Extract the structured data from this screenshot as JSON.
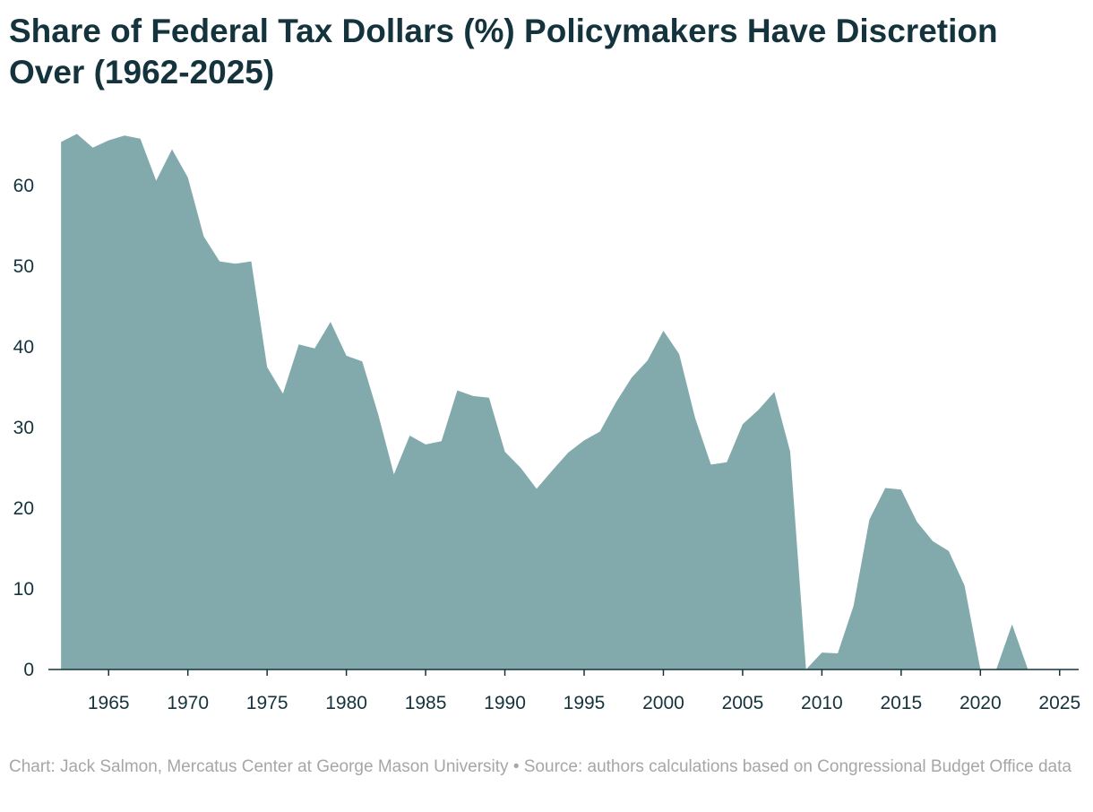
{
  "chart_data": {
    "type": "area",
    "title": "Share of Federal Tax Dollars (%) Policymakers Have Discretion Over (1962-2025)",
    "xlabel": "",
    "ylabel": "",
    "xlim": [
      1961.2,
      2026.2
    ],
    "ylim": [
      0,
      70
    ],
    "grid": false,
    "color": "#82aaad",
    "axis_color": "#14333d",
    "x_ticks": [
      1965,
      1970,
      1975,
      1980,
      1985,
      1990,
      1995,
      2000,
      2005,
      2010,
      2015,
      2020,
      2025
    ],
    "y_ticks": [
      0,
      10,
      20,
      30,
      40,
      50,
      60
    ],
    "series": [
      {
        "name": "Share of Federal Tax Dollars (%)",
        "x": [
          1962,
          1963,
          1964,
          1965,
          1966,
          1967,
          1968,
          1969,
          1970,
          1971,
          1972,
          1973,
          1974,
          1975,
          1976,
          1977,
          1978,
          1979,
          1980,
          1981,
          1982,
          1983,
          1984,
          1985,
          1986,
          1987,
          1988,
          1989,
          1990,
          1991,
          1992,
          1993,
          1994,
          1995,
          1996,
          1997,
          1998,
          1999,
          2000,
          2001,
          2002,
          2003,
          2004,
          2005,
          2006,
          2007,
          2008,
          2009,
          2010,
          2011,
          2012,
          2013,
          2014,
          2015,
          2016,
          2017,
          2018,
          2019,
          2020,
          2021,
          2022,
          2023
        ],
        "values": [
          65.4,
          66.4,
          64.7,
          65.6,
          66.2,
          65.8,
          60.6,
          64.5,
          61.0,
          53.7,
          50.6,
          50.3,
          50.6,
          37.5,
          34.2,
          40.3,
          39.8,
          43.1,
          38.9,
          38.2,
          31.7,
          24.2,
          29.0,
          27.9,
          28.3,
          34.6,
          33.9,
          33.7,
          27.0,
          25.0,
          22.4,
          24.7,
          26.9,
          28.4,
          29.5,
          33.1,
          36.2,
          38.3,
          42.0,
          39.1,
          31.2,
          25.4,
          25.7,
          30.4,
          32.2,
          34.4,
          27.0,
          0.0,
          2.1,
          2.0,
          7.9,
          18.6,
          22.5,
          22.3,
          18.3,
          15.9,
          14.7,
          10.4,
          0.0,
          0.0,
          5.6,
          0.0
        ]
      }
    ]
  },
  "caption": "Chart: Jack Salmon, Mercatus Center at George Mason University • Source: authors calculations based on Congressional Budget Office data"
}
